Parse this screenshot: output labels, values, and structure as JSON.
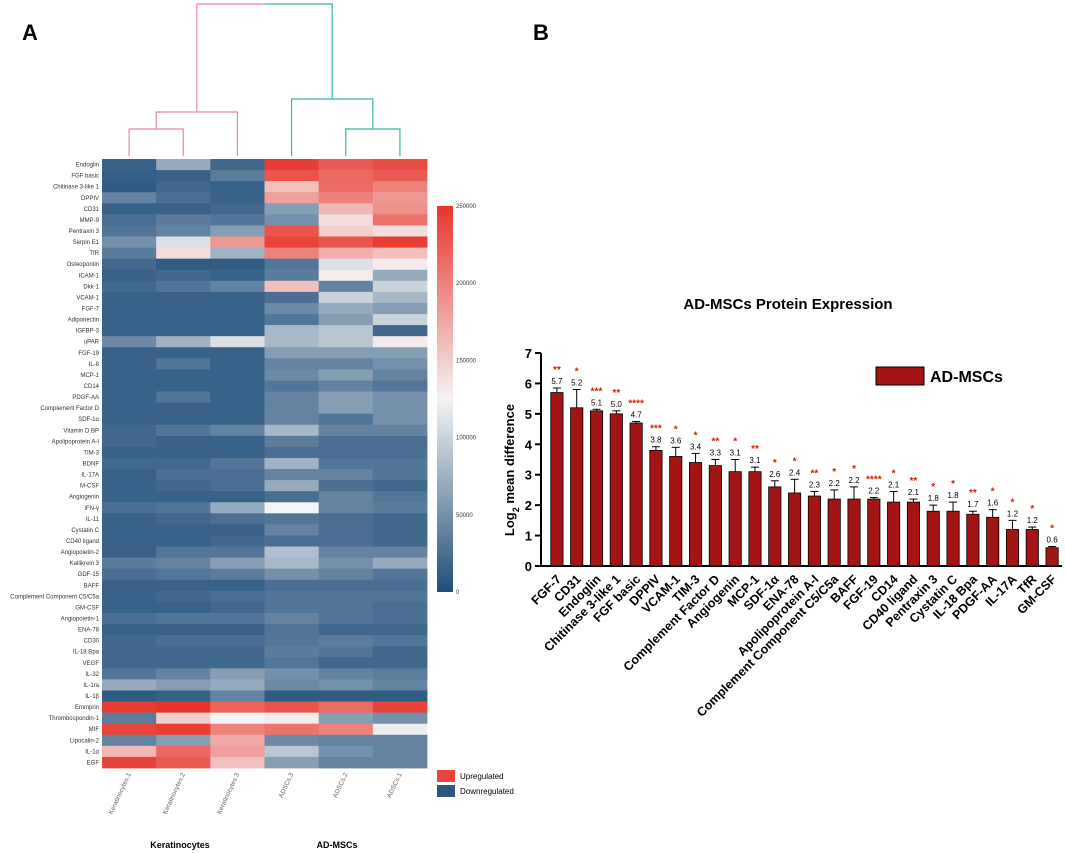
{
  "panels": {
    "a_letter": "A",
    "b_letter": "B"
  },
  "chart_data": [
    {
      "type": "heatmap",
      "columns": [
        "Keratinocytes.1",
        "Keratinocytes.2",
        "Keratinocytes.3",
        "ADSCs.3",
        "ADSCs.2",
        "ADSCs.1"
      ],
      "groups": [
        {
          "label": "Keratinocytes",
          "columns": [
            0,
            1,
            2
          ]
        },
        {
          "label": "AD-MSCs",
          "columns": [
            3,
            4,
            5
          ]
        }
      ],
      "rows": [
        "Endoglin",
        "FGF basic",
        "Chitinase 3-like 1",
        "DPPIV",
        "CD31",
        "MMP-9",
        "Pentraxin 3",
        "Serpin E1",
        "TfR",
        "Osteopontin",
        "ICAM-1",
        "Dkk-1",
        "VCAM-1",
        "FGF-7",
        "Adiponectin",
        "IGFBP-3",
        "uPAR",
        "FGF-19",
        "IL-8",
        "MCP-1",
        "CD14",
        "PDGF-AA",
        "Complement Factor D",
        "SDF-1α",
        "Vitamin D BP",
        "Apolipoprotein A-I",
        "TIM-3",
        "BDNF",
        "IL-17A",
        "M-CSF",
        "Angiogenin",
        "IFN-γ",
        "IL-11",
        "Cystatin C",
        "CD40 ligand",
        "Angiopoietin-2",
        "Kallikrein 3",
        "GDF-15",
        "BAFF",
        "Complement Component C5/C5a",
        "GM-CSF",
        "Angiopoietin-1",
        "ENA-78",
        "CD30",
        "IL-18 Bpa",
        "VEGF",
        "IL-32",
        "IL-1ra",
        "IL-1β",
        "Emmprin",
        "Thrombospondin-1",
        "MIF",
        "Lipocalin-2",
        "IL-1α",
        "EGF"
      ],
      "values": [
        [
          15000,
          70000,
          20000,
          245000,
          225000,
          235000
        ],
        [
          12000,
          15000,
          35000,
          230000,
          215000,
          225000
        ],
        [
          10000,
          20000,
          15000,
          160000,
          215000,
          200000
        ],
        [
          40000,
          25000,
          15000,
          180000,
          200000,
          185000
        ],
        [
          15000,
          15000,
          20000,
          60000,
          165000,
          190000
        ],
        [
          25000,
          35000,
          30000,
          50000,
          140000,
          210000
        ],
        [
          30000,
          40000,
          60000,
          230000,
          150000,
          140000
        ],
        [
          50000,
          110000,
          185000,
          240000,
          230000,
          245000
        ],
        [
          35000,
          140000,
          75000,
          200000,
          170000,
          160000
        ],
        [
          20000,
          10000,
          10000,
          30000,
          110000,
          130000
        ],
        [
          15000,
          20000,
          15000,
          35000,
          130000,
          70000
        ],
        [
          20000,
          30000,
          40000,
          160000,
          40000,
          100000
        ],
        [
          15000,
          15000,
          15000,
          25000,
          100000,
          80000
        ],
        [
          15000,
          15000,
          15000,
          45000,
          70000,
          60000
        ],
        [
          15000,
          15000,
          15000,
          30000,
          60000,
          100000
        ],
        [
          15000,
          15000,
          15000,
          80000,
          90000,
          20000
        ],
        [
          45000,
          75000,
          110000,
          80000,
          90000,
          130000
        ],
        [
          15000,
          15000,
          15000,
          60000,
          60000,
          60000
        ],
        [
          15000,
          30000,
          15000,
          40000,
          40000,
          50000
        ],
        [
          15000,
          15000,
          15000,
          45000,
          60000,
          40000
        ],
        [
          15000,
          15000,
          15000,
          30000,
          40000,
          30000
        ],
        [
          15000,
          30000,
          15000,
          40000,
          60000,
          50000
        ],
        [
          15000,
          15000,
          15000,
          40000,
          60000,
          50000
        ],
        [
          15000,
          15000,
          15000,
          40000,
          30000,
          50000
        ],
        [
          20000,
          30000,
          40000,
          80000,
          40000,
          40000
        ],
        [
          20000,
          15000,
          15000,
          35000,
          25000,
          25000
        ],
        [
          15000,
          15000,
          15000,
          25000,
          25000,
          25000
        ],
        [
          20000,
          20000,
          30000,
          75000,
          30000,
          30000
        ],
        [
          15000,
          25000,
          25000,
          40000,
          40000,
          30000
        ],
        [
          15000,
          20000,
          25000,
          70000,
          25000,
          20000
        ],
        [
          15000,
          15000,
          15000,
          25000,
          40000,
          30000
        ],
        [
          25000,
          30000,
          70000,
          125000,
          40000,
          35000
        ],
        [
          15000,
          20000,
          25000,
          30000,
          25000,
          20000
        ],
        [
          15000,
          15000,
          15000,
          40000,
          25000,
          20000
        ],
        [
          15000,
          15000,
          20000,
          25000,
          25000,
          20000
        ],
        [
          15000,
          30000,
          30000,
          85000,
          40000,
          40000
        ],
        [
          35000,
          40000,
          60000,
          80000,
          50000,
          70000
        ],
        [
          25000,
          30000,
          35000,
          50000,
          40000,
          30000
        ],
        [
          15000,
          15000,
          15000,
          25000,
          25000,
          25000
        ],
        [
          15000,
          20000,
          25000,
          30000,
          30000,
          30000
        ],
        [
          15000,
          15000,
          20000,
          30000,
          30000,
          25000
        ],
        [
          25000,
          30000,
          30000,
          40000,
          30000,
          25000
        ],
        [
          15000,
          15000,
          15000,
          30000,
          20000,
          20000
        ],
        [
          20000,
          25000,
          25000,
          30000,
          35000,
          30000
        ],
        [
          20000,
          20000,
          20000,
          35000,
          30000,
          20000
        ],
        [
          20000,
          20000,
          20000,
          30000,
          20000,
          20000
        ],
        [
          30000,
          40000,
          60000,
          50000,
          40000,
          35000
        ],
        [
          70000,
          60000,
          70000,
          45000,
          50000,
          40000
        ],
        [
          10000,
          15000,
          40000,
          10000,
          10000,
          10000
        ],
        [
          245000,
          250000,
          220000,
          230000,
          215000,
          240000
        ],
        [
          35000,
          150000,
          125000,
          130000,
          60000,
          50000
        ],
        [
          240000,
          245000,
          200000,
          210000,
          200000,
          120000
        ],
        [
          40000,
          60000,
          175000,
          45000,
          40000,
          40000
        ],
        [
          165000,
          215000,
          180000,
          90000,
          50000,
          40000
        ],
        [
          240000,
          225000,
          160000,
          60000,
          40000,
          40000
        ]
      ],
      "colorbar": {
        "min": 0,
        "max": 250000,
        "ticks": [
          "250000",
          "200000",
          "150000",
          "100000",
          "50000",
          "0"
        ]
      },
      "low_color": "#1f4e79",
      "mid_color": "#f4f4f4",
      "high_color": "#e8352b",
      "legend": [
        {
          "label": "Upregulated",
          "color": "#e8453b"
        },
        {
          "label": "Downregulated",
          "color": "#2a5584"
        }
      ]
    },
    {
      "type": "bar",
      "title": "AD-MSCs Protein Expression",
      "ylabel_main": "Log",
      "ylabel_sub": "2",
      "ylabel_rest": " mean difference",
      "ylim": [
        0,
        7
      ],
      "yticks": [
        "0",
        "1",
        "2",
        "3",
        "4",
        "5",
        "6",
        "7"
      ],
      "series_name": "AD-MSCs",
      "bar_color": "#a31515",
      "categories": [
        "FGF-7",
        "CD31",
        "Endoglin",
        "Chitinase 3-like 1",
        "FGF basic",
        "DPPIV",
        "VCAM-1",
        "TIM-3",
        "Complement Factor D",
        "Angiogenin",
        "MCP-1",
        "SDF-1α",
        "ENA-78",
        "Apolipoprotein A-I",
        "Complement Component C5/C5a",
        "BAFF",
        "FGF-19",
        "CD14",
        "CD40 ligand",
        "Pentraxin 3",
        "Cystatin C",
        "IL-18 Bpa",
        "PDGF-AA",
        "IL-17A",
        "TfR",
        "GM-CSF"
      ],
      "values": [
        5.7,
        5.2,
        5.1,
        5.0,
        4.7,
        3.8,
        3.6,
        3.4,
        3.3,
        3.1,
        3.1,
        2.6,
        2.4,
        2.3,
        2.2,
        2.2,
        2.2,
        2.1,
        2.1,
        1.8,
        1.8,
        1.7,
        1.6,
        1.2,
        1.2,
        0.6
      ],
      "value_labels": [
        "5.7",
        "5.2",
        "5.1",
        "5.0",
        "4.7",
        "3.8",
        "3.6",
        "3.4",
        "3.3",
        "3.1",
        "3.1",
        "2.6",
        "2.4",
        "2.3",
        "2.2",
        "2.2",
        "2.2",
        "2.1",
        "2.1",
        "1.8",
        "1.8",
        "1.7",
        "1.6",
        "1.2",
        "1.2",
        "0.6"
      ],
      "errors": [
        0.15,
        0.6,
        0.05,
        0.1,
        0.05,
        0.12,
        0.3,
        0.3,
        0.2,
        0.4,
        0.15,
        0.2,
        0.45,
        0.15,
        0.3,
        0.4,
        0.05,
        0.35,
        0.1,
        0.2,
        0.3,
        0.1,
        0.25,
        0.3,
        0.08,
        0.04
      ],
      "significance": [
        "**",
        "*",
        "***",
        "**",
        "****",
        "***",
        "*",
        "*",
        "**",
        "*",
        "**",
        "*",
        "*",
        "**",
        "*",
        "*",
        "****",
        "*",
        "**",
        "*",
        "*",
        "**",
        "*",
        "*",
        "*",
        "*"
      ]
    }
  ]
}
